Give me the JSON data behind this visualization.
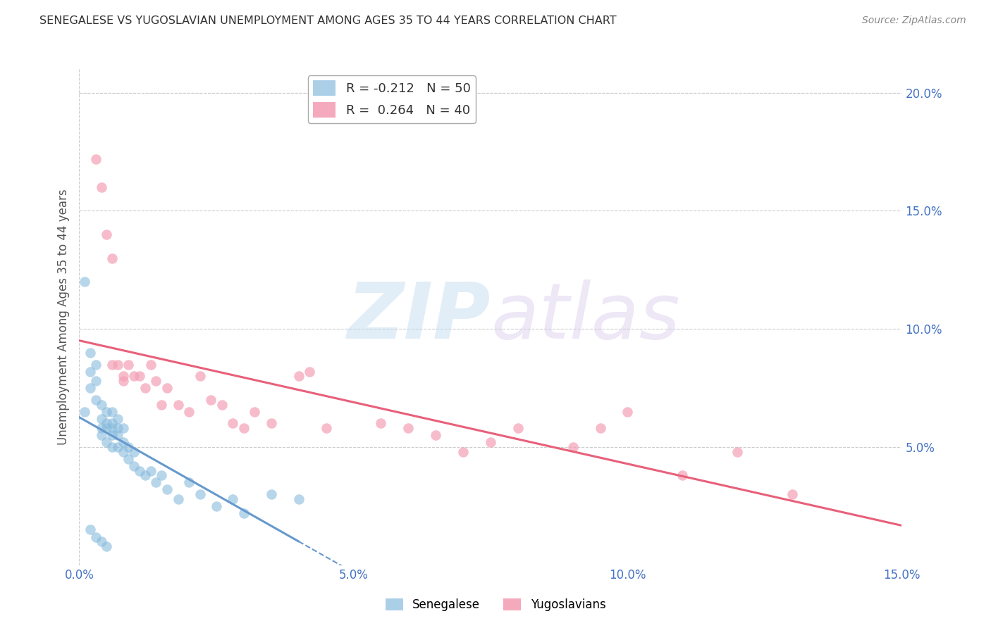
{
  "title": "SENEGALESE VS YUGOSLAVIAN UNEMPLOYMENT AMONG AGES 35 TO 44 YEARS CORRELATION CHART",
  "source": "Source: ZipAtlas.com",
  "ylabel": "Unemployment Among Ages 35 to 44 years",
  "xlim": [
    0.0,
    0.15
  ],
  "ylim": [
    0.0,
    0.21
  ],
  "xticks": [
    0.0,
    0.025,
    0.05,
    0.075,
    0.1,
    0.125,
    0.15
  ],
  "xticklabels": [
    "0.0%",
    "",
    "5.0%",
    "",
    "10.0%",
    "",
    "15.0%"
  ],
  "yticks_right": [
    0.05,
    0.1,
    0.15,
    0.2
  ],
  "ytick_labels_right": [
    "5.0%",
    "10.0%",
    "15.0%",
    "20.0%"
  ],
  "senegalese_x": [
    0.001,
    0.001,
    0.002,
    0.002,
    0.002,
    0.003,
    0.003,
    0.003,
    0.004,
    0.004,
    0.004,
    0.004,
    0.005,
    0.005,
    0.005,
    0.005,
    0.006,
    0.006,
    0.006,
    0.006,
    0.006,
    0.007,
    0.007,
    0.007,
    0.007,
    0.008,
    0.008,
    0.008,
    0.009,
    0.009,
    0.01,
    0.01,
    0.011,
    0.012,
    0.013,
    0.014,
    0.015,
    0.016,
    0.018,
    0.02,
    0.022,
    0.025,
    0.028,
    0.03,
    0.035,
    0.04,
    0.002,
    0.003,
    0.004,
    0.005
  ],
  "senegalese_y": [
    0.12,
    0.065,
    0.09,
    0.082,
    0.075,
    0.085,
    0.078,
    0.07,
    0.068,
    0.062,
    0.058,
    0.055,
    0.065,
    0.06,
    0.058,
    0.052,
    0.065,
    0.06,
    0.058,
    0.055,
    0.05,
    0.062,
    0.058,
    0.055,
    0.05,
    0.058,
    0.052,
    0.048,
    0.05,
    0.045,
    0.048,
    0.042,
    0.04,
    0.038,
    0.04,
    0.035,
    0.038,
    0.032,
    0.028,
    0.035,
    0.03,
    0.025,
    0.028,
    0.022,
    0.03,
    0.028,
    0.015,
    0.012,
    0.01,
    0.008
  ],
  "yugoslavian_x": [
    0.003,
    0.004,
    0.005,
    0.006,
    0.006,
    0.007,
    0.008,
    0.008,
    0.009,
    0.01,
    0.011,
    0.012,
    0.013,
    0.014,
    0.015,
    0.016,
    0.018,
    0.02,
    0.022,
    0.024,
    0.026,
    0.028,
    0.03,
    0.032,
    0.035,
    0.04,
    0.042,
    0.045,
    0.055,
    0.06,
    0.065,
    0.07,
    0.075,
    0.08,
    0.09,
    0.095,
    0.1,
    0.11,
    0.12,
    0.13
  ],
  "yugoslavian_y": [
    0.172,
    0.16,
    0.14,
    0.13,
    0.085,
    0.085,
    0.08,
    0.078,
    0.085,
    0.08,
    0.08,
    0.075,
    0.085,
    0.078,
    0.068,
    0.075,
    0.068,
    0.065,
    0.08,
    0.07,
    0.068,
    0.06,
    0.058,
    0.065,
    0.06,
    0.08,
    0.082,
    0.058,
    0.06,
    0.058,
    0.055,
    0.048,
    0.052,
    0.058,
    0.05,
    0.058,
    0.065,
    0.038,
    0.048,
    0.03
  ],
  "blue_color": "#6699cc",
  "pink_color": "#e8607a",
  "blue_scatter_color": "#88bbdd",
  "pink_scatter_color": "#f4a0b5",
  "title_color": "#333333",
  "axis_label_color": "#555555",
  "tick_color": "#4472c4",
  "grid_color": "#cccccc",
  "background_color": "#ffffff",
  "sen_trend_x_start": 0.0,
  "sen_trend_x_solid_end": 0.04,
  "sen_trend_x_dash_end": 0.15,
  "yug_trend_x_start": 0.0,
  "yug_trend_x_end": 0.15
}
